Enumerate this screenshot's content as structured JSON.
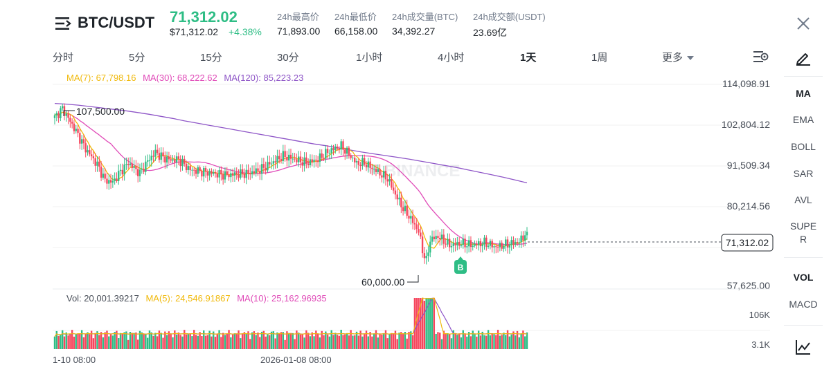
{
  "header": {
    "pair": "BTC/USDT",
    "price": "71,312.02",
    "price_usd": "$71,312.02",
    "change": "+4.38%",
    "stats": [
      {
        "label": "24h最高价",
        "value": "71,893.00"
      },
      {
        "label": "24h最低价",
        "value": "66,158.00"
      },
      {
        "label": "24h成交量(BTC)",
        "value": "34,392.27"
      },
      {
        "label": "24h成交额(USDT)",
        "value": "23.69亿"
      }
    ]
  },
  "tabs": [
    "分时",
    "5分",
    "15分",
    "30分",
    "1小时",
    "4小时",
    "1天",
    "1周",
    "更多"
  ],
  "active_tab": "1天",
  "sidebar": {
    "items": [
      "MA",
      "EMA",
      "BOLL",
      "SAR",
      "AVL",
      "SUPER",
      "VOL",
      "MACD"
    ],
    "super_line1": "SUPE",
    "super_line2": "R"
  },
  "ma_legend": {
    "ma7": "MA(7): 67,798.16",
    "ma30": "MA(30): 68,222.62",
    "ma120": "MA(120): 85,223.23"
  },
  "vol_legend": {
    "vol": "Vol: 20,001.39217",
    "ma5": "MA(5): 24,546.91867",
    "ma10": "MA(10): 25,162.96935"
  },
  "colors": {
    "up": "#2ebd85",
    "down": "#f6465d",
    "ma7": "#f0b90b",
    "ma30": "#e04bb8",
    "ma120": "#8e55c7"
  },
  "chart_data": {
    "type": "candlestick",
    "y_axis_ticks": [
      "114,098.91",
      "102,804.12",
      "91,509.34",
      "80,214.56",
      "57,625.00"
    ],
    "y_range": [
      53000,
      117000
    ],
    "current_price_label": "71,312.02",
    "high_marker": "107,500.00",
    "low_marker": "60,000.00",
    "buy_marker": "B",
    "watermark": "BINANCE",
    "volume_ticks": [
      "106K",
      "3.1K"
    ],
    "x_labels": [
      "1-10 08:00",
      "2026-01-08 08:00"
    ],
    "ma120": [
      108000,
      107800,
      107500,
      107100,
      106700,
      106300,
      105900,
      105400,
      104900,
      104300,
      103700,
      103000,
      102400,
      101800,
      101200,
      100600,
      100000,
      99400,
      98800,
      98200,
      97600,
      97000,
      96400,
      95900,
      95300,
      94700,
      94100,
      93600,
      93100,
      92600,
      92100,
      91500,
      90900,
      90300,
      89700,
      89000,
      88300,
      87600,
      86900,
      86100,
      85300
    ]
  }
}
